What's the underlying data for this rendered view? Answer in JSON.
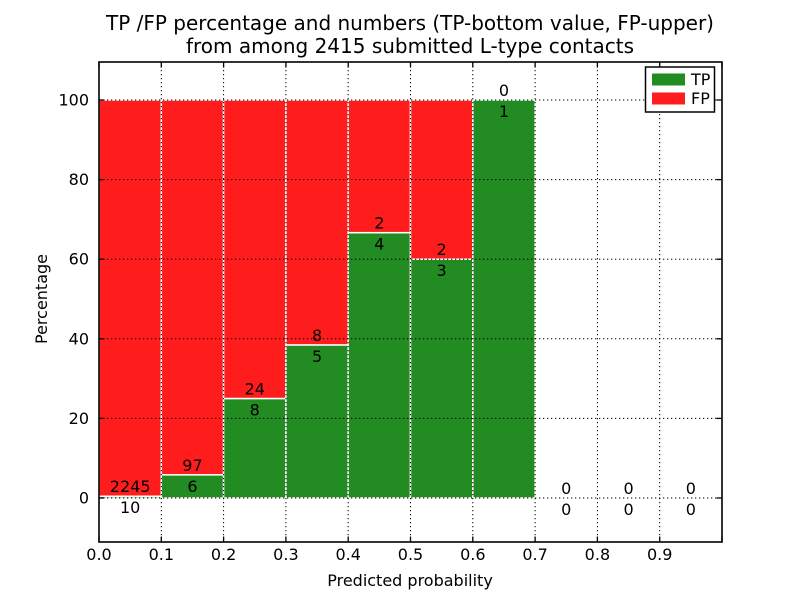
{
  "chart_data": {
    "type": "bar",
    "stacked": true,
    "title_line1": "TP /FP percentage and numbers (TP-bottom value, FP-upper)",
    "title_line2": "from among 2415 submitted L-type contacts",
    "xlabel": "Predicted probability",
    "ylabel": "Percentage",
    "total_contacts": 2415,
    "bin_width": 0.1,
    "x_tick_labels": [
      "0.0",
      "0.1",
      "0.2",
      "0.3",
      "0.4",
      "0.5",
      "0.6",
      "0.7",
      "0.8",
      "0.9"
    ],
    "y_ticks": [
      0,
      20,
      40,
      60,
      80,
      100
    ],
    "xlim": [
      0.0,
      1.0
    ],
    "ylim": [
      -10,
      110
    ],
    "grid": "dotted-black-over-bars",
    "bar_edge_color": "#ffffff",
    "series": [
      {
        "name": "TP",
        "color": "#228b22",
        "counts": [
          10,
          6,
          8,
          5,
          4,
          3,
          1,
          0,
          0,
          0
        ]
      },
      {
        "name": "FP",
        "color": "#ff1c1c",
        "counts": [
          2245,
          97,
          24,
          8,
          2,
          2,
          0,
          0,
          0,
          0
        ]
      }
    ],
    "tp_percent": [
      0.44,
      5.83,
      25.0,
      38.46,
      66.67,
      60.0,
      100.0,
      null,
      null,
      null
    ],
    "legend": {
      "position": "upper right",
      "entries": [
        {
          "label": "TP",
          "color": "#228b22"
        },
        {
          "label": "FP",
          "color": "#ff1c1c"
        }
      ]
    }
  }
}
